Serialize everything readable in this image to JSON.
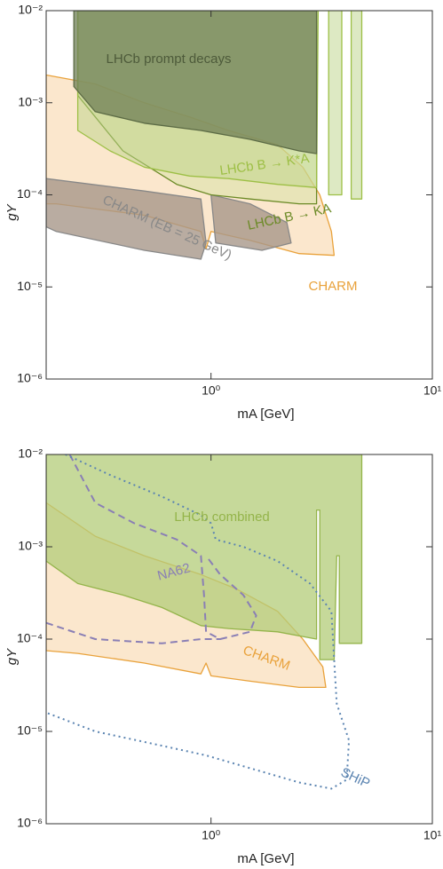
{
  "chart_data": [
    {
      "type": "area",
      "x_label": "mA [GeV]",
      "y_label": "gY",
      "log_x": true,
      "log_y": true,
      "xlim": [
        0.18,
        10
      ],
      "ylim": [
        1e-06,
        0.01
      ],
      "xticks": [
        {
          "value": 1,
          "label": "10⁰"
        },
        {
          "value": 10,
          "label": "10¹"
        }
      ],
      "yticks": [
        {
          "value": 1e-06,
          "label": "10⁻⁶"
        },
        {
          "value": 1e-05,
          "label": "10⁻⁵"
        },
        {
          "value": 0.0001,
          "label": "10⁻⁴"
        },
        {
          "value": 0.001,
          "label": "10⁻³"
        },
        {
          "value": 0.01,
          "label": "10⁻²"
        }
      ],
      "series": [
        {
          "name": "CHARM",
          "color": "#e9a23b",
          "fill": "#f9ddb8",
          "opacity": 0.7,
          "style": "solid",
          "x": [
            0.18,
            0.3,
            0.5,
            0.8,
            1.2,
            2,
            2.6,
            3.1,
            3.5,
            3.6,
            2.5,
            1.5,
            1.0,
            0.95,
            0.9,
            0.5,
            0.2,
            0.18
          ],
          "values": [
            0.002,
            0.0016,
            0.001,
            0.0007,
            0.0005,
            0.00035,
            0.0002,
            0.0001,
            4e-05,
            2.2e-05,
            2.3e-05,
            3.2e-05,
            4e-05,
            2.6e-05,
            4e-05,
            6e-05,
            8e-05,
            8e-05
          ]
        },
        {
          "name": "CHARM (EB = 25 GeV)",
          "color": "#888888",
          "fill": "#a8978a",
          "opacity": 0.8,
          "style": "solid",
          "x": [
            0.18,
            0.5,
            0.9,
            0.95,
            0.9,
            0.5,
            0.2,
            0.18,
            null,
            1.0,
            1.5,
            2.2,
            2.3,
            1.7,
            1.05
          ],
          "values": [
            0.00015,
            0.00011,
            9e-05,
            3e-05,
            2e-05,
            2.5e-05,
            4e-05,
            4.5e-05,
            null,
            0.0001,
            8e-05,
            5e-05,
            3e-05,
            2.5e-05,
            3e-05
          ]
        },
        {
          "name": "LHCb B → KA",
          "color": "#6b8a26",
          "fill": "#d6e2a4",
          "opacity": 0.5,
          "style": "solid",
          "x": [
            0.25,
            0.4,
            0.7,
            1.0,
            1.5,
            2.5,
            3,
            3,
            0.25
          ],
          "values": [
            0.0012,
            0.0003,
            0.00013,
            0.0001,
            9e-05,
            8e-05,
            8e-05,
            0.01,
            0.01
          ]
        },
        {
          "name": "LHCb B → K*A",
          "color": "#9dbf45",
          "fill": "#bcd488",
          "opacity": 0.5,
          "style": "solid",
          "x": [
            0.25,
            0.25,
            0.35,
            0.5,
            0.8,
            1.2,
            2,
            3,
            3.05,
            3.4,
            3.4,
            3.9,
            3.9,
            4.3,
            4.3,
            4.8,
            4.8
          ],
          "values": [
            0.01,
            0.0005,
            0.0003,
            0.0002,
            0.00016,
            0.00015,
            0.00013,
            0.00012,
            0.01,
            0.01,
            0.0001,
            0.0001,
            0.01,
            0.01,
            9e-05,
            9e-05,
            0.01
          ]
        },
        {
          "name": "LHCb prompt decays",
          "color": "#5c6b45",
          "fill": "#6f7f55",
          "opacity": 0.75,
          "style": "solid",
          "x": [
            0.24,
            0.24,
            0.3,
            0.5,
            0.9,
            1.5,
            2.5,
            3.0,
            3.0
          ],
          "values": [
            0.01,
            0.0015,
            0.0008,
            0.0006,
            0.0005,
            0.0004,
            0.0003,
            0.00028,
            0.01
          ]
        }
      ]
    },
    {
      "type": "area",
      "x_label": "mA [GeV]",
      "y_label": "gY",
      "log_x": true,
      "log_y": true,
      "xlim": [
        0.18,
        10
      ],
      "ylim": [
        1e-06,
        0.01
      ],
      "xticks": [
        {
          "value": 1,
          "label": "10⁰"
        },
        {
          "value": 10,
          "label": "10¹"
        }
      ],
      "yticks": [
        {
          "value": 1e-06,
          "label": "10⁻⁶"
        },
        {
          "value": 1e-05,
          "label": "10⁻⁵"
        },
        {
          "value": 0.0001,
          "label": "10⁻⁴"
        },
        {
          "value": 0.001,
          "label": "10⁻³"
        },
        {
          "value": 0.01,
          "label": "10⁻²"
        }
      ],
      "series": [
        {
          "name": "CHARM",
          "color": "#e9a23b",
          "fill": "#f9ddb8",
          "opacity": 0.7,
          "style": "solid",
          "x": [
            0.18,
            0.3,
            0.5,
            0.9,
            1.3,
            2,
            2.6,
            3.2,
            3.3,
            2.5,
            1.5,
            1.0,
            0.95,
            0.9,
            0.5,
            0.25,
            0.18
          ],
          "values": [
            0.003,
            0.0013,
            0.0008,
            0.0005,
            0.00035,
            0.0002,
            0.0001,
            5e-05,
            3e-05,
            3e-05,
            3.5e-05,
            4e-05,
            5.5e-05,
            4.2e-05,
            5.5e-05,
            7e-05,
            7.5e-05
          ]
        },
        {
          "name": "LHCb combined",
          "color": "#94b44a",
          "fill": "#b3cc78",
          "opacity": 0.75,
          "style": "solid",
          "x": [
            0.18,
            0.18,
            0.25,
            0.4,
            0.6,
            0.9,
            1.2,
            2,
            3.0,
            3.0,
            3.1,
            3.1,
            3.6,
            3.7,
            3.8,
            3.8,
            4.8,
            4.8
          ],
          "values": [
            0.01,
            0.0007,
            0.0004,
            0.0003,
            0.00022,
            0.00014,
            0.00013,
            0.00012,
            0.0001,
            0.0025,
            0.0025,
            6e-05,
            6e-05,
            0.0008,
            0.0008,
            9e-05,
            9e-05,
            0.01
          ]
        },
        {
          "name": "NA62",
          "color": "#8a7fb5",
          "style": "dashed",
          "x": [
            0.23,
            0.3,
            0.45,
            0.7,
            0.9,
            0.93,
            0.95,
            1.1,
            1.5,
            1.6,
            1.4,
            1.1,
            0.95,
            null,
            0.18,
            0.3,
            0.6,
            0.9,
            1.1
          ],
          "values": [
            0.01,
            0.003,
            0.0018,
            0.0012,
            0.0008,
            0.0003,
            0.00012,
            0.0001,
            0.00012,
            0.00018,
            0.0003,
            0.0005,
            0.0008,
            null,
            0.00015,
            0.0001,
            9e-05,
            0.0001,
            0.0001
          ]
        },
        {
          "name": "SHiP",
          "color": "#5b84b1",
          "style": "dotted",
          "x": [
            0.22,
            0.35,
            0.6,
            0.9,
            1.0,
            1.05,
            1.4,
            2.0,
            2.8,
            3.5,
            3.6,
            3.7,
            4.2,
            4.1,
            3.5,
            2.5,
            1.5,
            0.95,
            0.6,
            0.3,
            0.18
          ],
          "values": [
            0.01,
            0.006,
            0.0035,
            0.0022,
            0.0018,
            0.0012,
            0.001,
            0.0007,
            0.0004,
            0.0002,
            6e-05,
            2e-05,
            8e-06,
            3e-06,
            2.4e-06,
            2.8e-06,
            4e-06,
            5.5e-06,
            7e-06,
            1e-05,
            1.6e-05
          ]
        }
      ]
    }
  ]
}
